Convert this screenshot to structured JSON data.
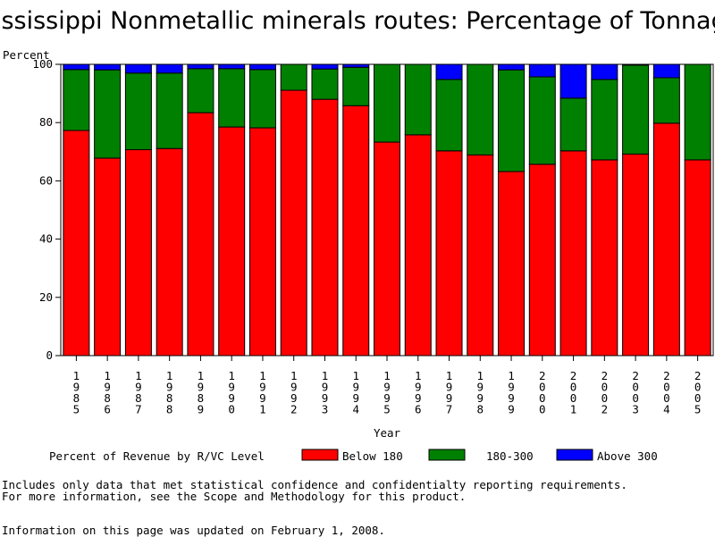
{
  "chart_data": {
    "type": "bar",
    "stacked": true,
    "title": "Mississippi Nonmetallic minerals routes: Percentage of Tonnage",
    "ylabel": "Percent",
    "xlabel": "Year",
    "ylim": [
      0,
      100
    ],
    "yticks": [
      0,
      20,
      40,
      60,
      80,
      100
    ],
    "categories": [
      "1985",
      "1986",
      "1987",
      "1988",
      "1989",
      "1990",
      "1991",
      "1992",
      "1993",
      "1994",
      "1995",
      "1996",
      "1997",
      "1998",
      "1999",
      "2000",
      "2001",
      "2002",
      "2003",
      "2004",
      "2005"
    ],
    "legend_title": "Percent of Revenue by R/VC Level",
    "series": [
      {
        "name": "Below 180",
        "color": "#ff0000",
        "values": [
          77.3,
          67.8,
          70.7,
          71.1,
          83.4,
          78.5,
          78.2,
          91.1,
          88.0,
          85.8,
          73.3,
          75.8,
          70.3,
          68.9,
          63.2,
          65.7,
          70.3,
          67.2,
          69.2,
          79.8,
          67.2
        ]
      },
      {
        "name": "180-300",
        "color": "#008000",
        "values": [
          20.9,
          30.3,
          26.3,
          25.9,
          15.1,
          20.0,
          20.0,
          8.9,
          10.4,
          13.2,
          26.7,
          24.2,
          24.5,
          31.1,
          34.9,
          30.0,
          18.1,
          27.6,
          30.5,
          15.6,
          32.8
        ]
      },
      {
        "name": "Above 300",
        "color": "#0000ff",
        "values": [
          1.8,
          1.9,
          3.0,
          3.0,
          1.5,
          1.5,
          1.8,
          0.0,
          1.6,
          1.0,
          0.0,
          0.0,
          5.2,
          0.0,
          1.9,
          4.3,
          11.6,
          5.2,
          0.3,
          4.6,
          0.0
        ]
      }
    ]
  },
  "footnote": {
    "line1": "Includes only data that met statistical confidence and confidentialty reporting requirements.",
    "line2": "For more information, see the Scope and Methodology for this product.",
    "updated": "Information on this page was updated on February 1, 2008."
  }
}
